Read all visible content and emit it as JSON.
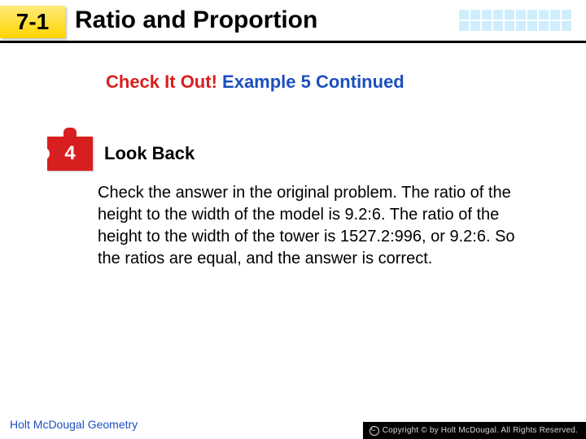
{
  "header": {
    "section_number": "7-1",
    "title": "Ratio and Proportion",
    "grid": {
      "rows": 2,
      "cols": 10,
      "cell_color": "#cfeefd"
    },
    "box_gradient_top": "#ffeb7a",
    "box_gradient_bottom": "#ffd500"
  },
  "subtitle": {
    "red_text": "Check It Out!",
    "blue_text": "Example 5 Continued",
    "red_color": "#d81f1f",
    "blue_color": "#1c4fbf"
  },
  "step": {
    "number": "4",
    "title": "Look Back",
    "puzzle_color": "#d81f1f"
  },
  "body": "Check the answer in the original problem. The ratio of the height to the width of the model is 9.2:6. The ratio of the height to the width of the tower is 1527.2:996, or 9.2:6. So the ratios are equal, and the answer is correct.",
  "footer": {
    "left": "Holt McDougal Geometry",
    "right": "Copyright © by Holt McDougal. All Rights Reserved.",
    "left_color": "#1c4fbf"
  },
  "colors": {
    "background": "#ffffff",
    "text": "#000000"
  }
}
